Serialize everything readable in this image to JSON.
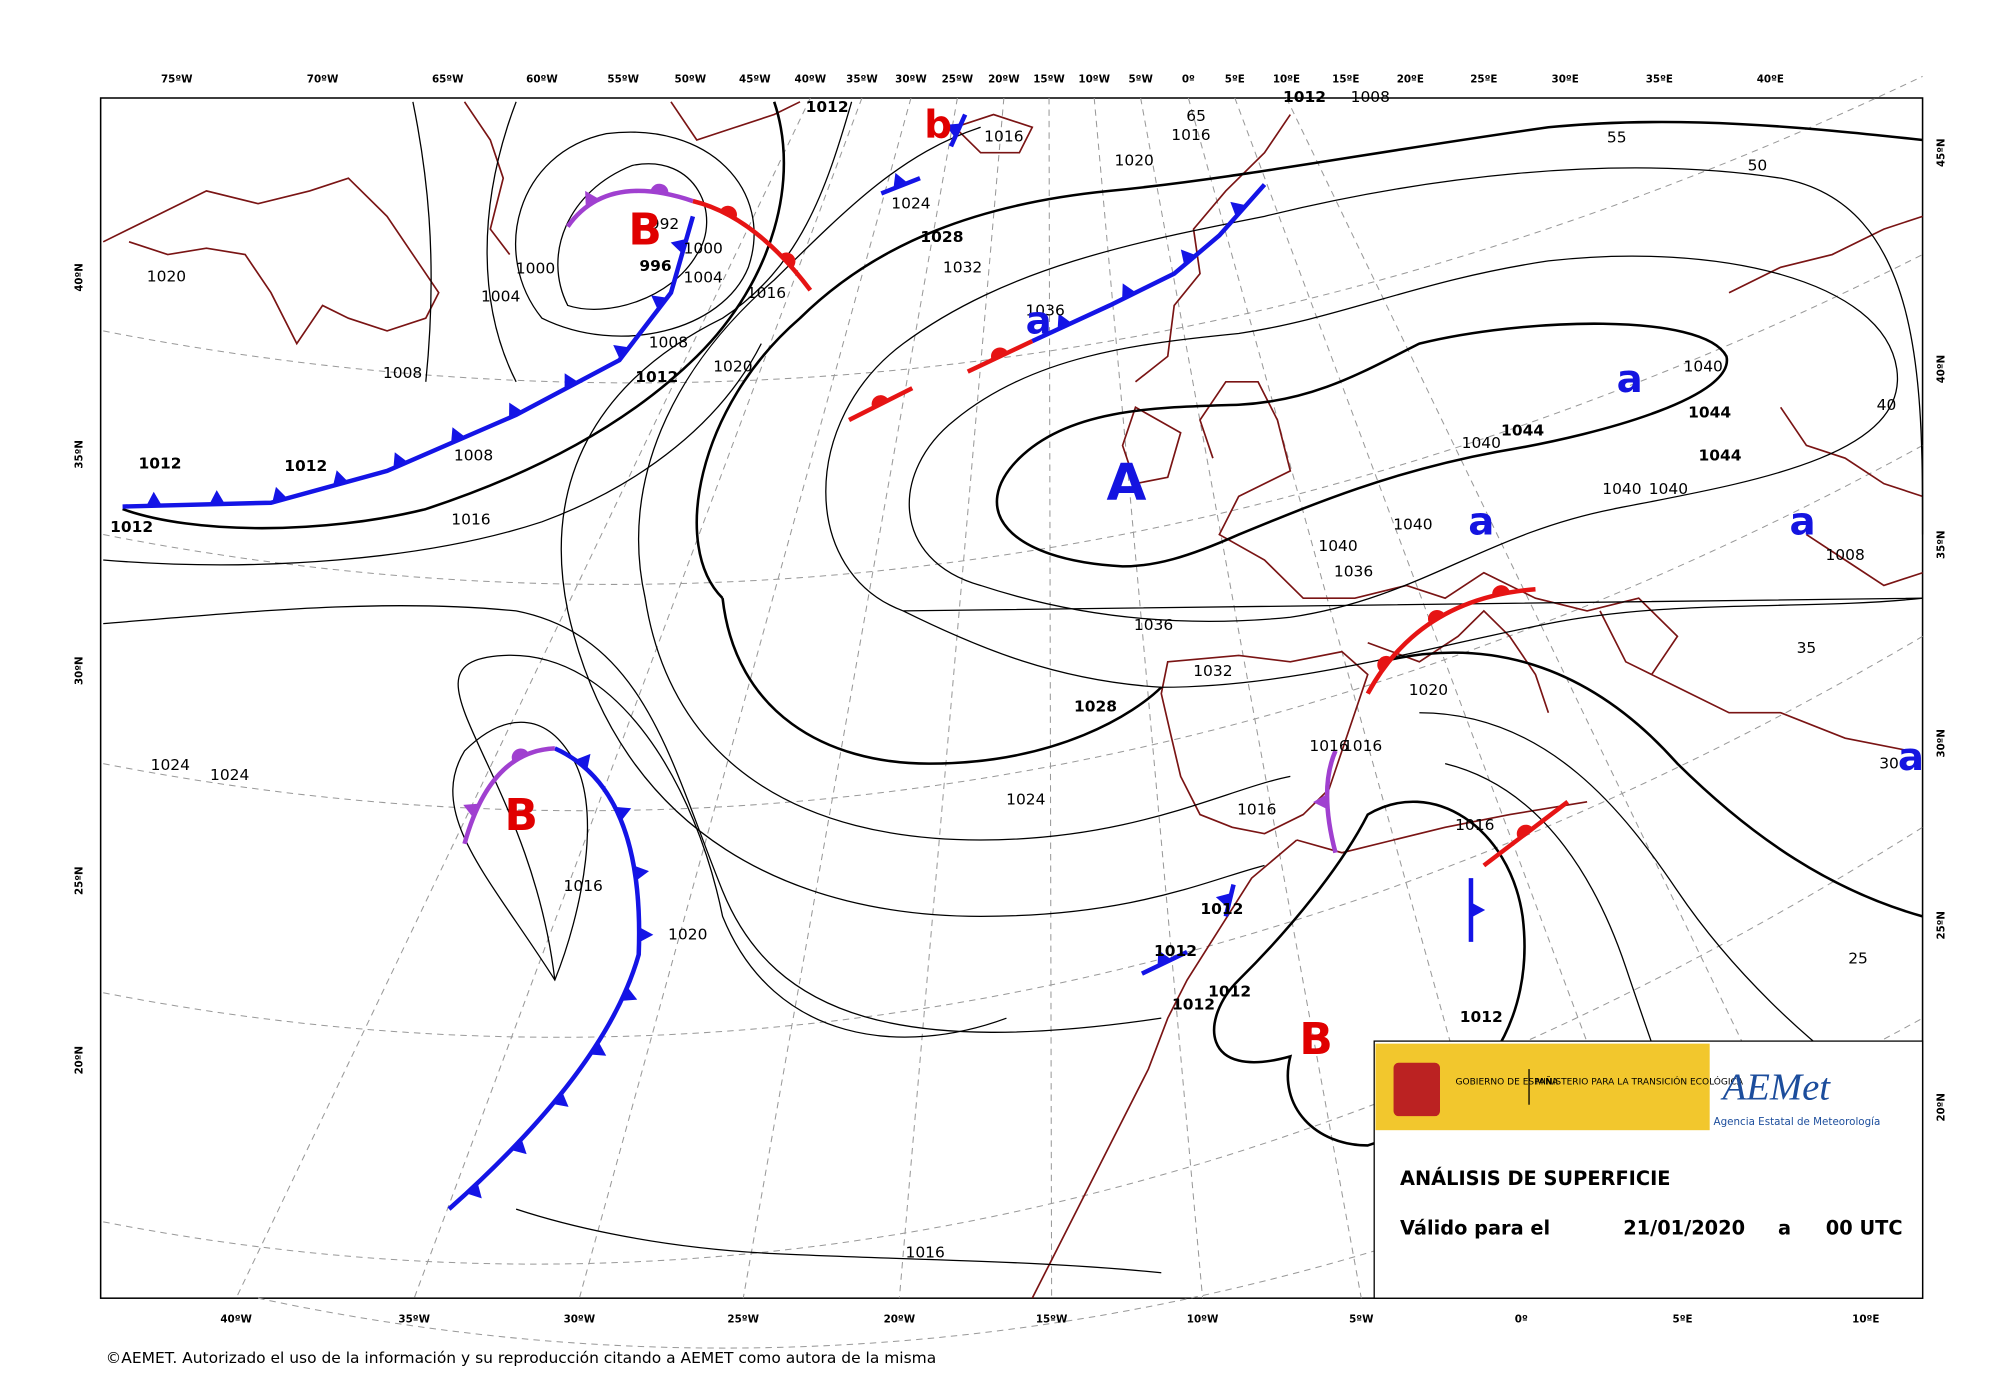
{
  "top_axis": [
    "75ºW",
    "70ºW",
    "65ºW",
    "60ºW",
    "55ºW",
    "50ºW",
    "45ºW",
    "40ºW",
    "35ºW",
    "30ºW",
    "25ºW",
    "20ºW",
    "15ºW",
    "10ºW",
    "5ºW",
    "0º",
    "5ºE",
    "10ºE",
    "15ºE",
    "20ºE",
    "25ºE",
    "30ºE",
    "35ºE",
    "40ºE"
  ],
  "bottom_axis": [
    "40ºW",
    "35ºW",
    "30ºW",
    "25ºW",
    "20ºW",
    "15ºW",
    "10ºW",
    "5ºW",
    "0º",
    "5ºE",
    "10ºE"
  ],
  "left_axis": [
    "40ºN",
    "35ºN",
    "30ºN",
    "25ºN",
    "20ºN"
  ],
  "right_axis": [
    "45ºN",
    "40ºN",
    "35ºN",
    "30ºN",
    "25ºN",
    "20ºN"
  ],
  "isobar_labels": [
    "1012",
    "1016",
    "1020",
    "1016",
    "1012",
    "1008",
    "1024",
    "1028",
    "1032",
    "1036",
    "1000",
    "1004",
    "996",
    "992",
    "1000",
    "1004",
    "1016",
    "1020",
    "1008",
    "1012",
    "1008",
    "1012",
    "1012",
    "1012",
    "1008",
    "1016",
    "1020",
    "1040",
    "1044",
    "1044",
    "1040",
    "1044",
    "1040",
    "1040",
    "1040",
    "1040",
    "1036",
    "1036",
    "1032",
    "1028",
    "1024",
    "1024",
    "1024",
    "1016",
    "1020",
    "1016",
    "1016",
    "1020",
    "1012",
    "1012",
    "1012",
    "1012",
    "1016",
    "1012",
    "1016",
    "1016",
    "1008",
    "65",
    "55",
    "50",
    "40",
    "35",
    "30",
    "25"
  ],
  "pressure_centers": [
    "B",
    "B",
    "A",
    "a",
    "b",
    "a",
    "a",
    "a",
    "a",
    "B"
  ],
  "info_box": {
    "gov": "GOBIERNO DE ESPAÑA",
    "ministry": "MINISTERIO PARA LA TRANSICIÓN ECOLÓGICA",
    "logo": "AEMet",
    "agency": "Agencia Estatal de Meteorología",
    "title": "ANÁLISIS DE SUPERFICIE",
    "valid_label": "Válido para el",
    "date": "21/01/2020",
    "at": "a",
    "time": "00 UTC"
  },
  "footer": "©AEMET. Autorizado el uso de la información y su reproducción citando a AEMET como autora de la misma"
}
